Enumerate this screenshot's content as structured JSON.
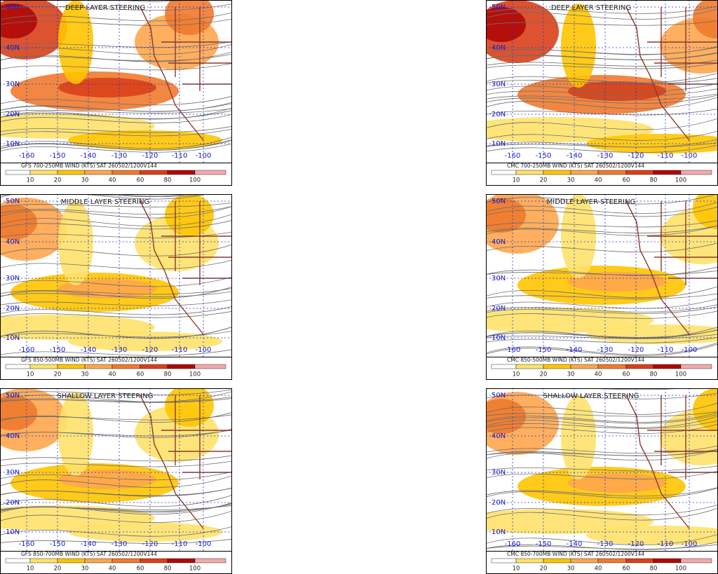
{
  "panels": [
    {
      "title": "DEEP LAYER STEERING",
      "caption": "GFS 700-250MB WIND (KTS) SAT 260502/1200V144"
    },
    {
      "title": "DEEP LAYER STEERING",
      "caption": "CMC 700-250MB WIND (KTS) SAT 260502/1200V144"
    },
    {
      "title": "MIDDLE LAYER STEERING",
      "caption": "GFS 850-500MB WIND (KTS) SAT 260502/1200V144"
    },
    {
      "title": "MIDDLE LAYER STEERING",
      "caption": "CMC 850-500MB WIND (KTS) SAT 260502/1200V144"
    },
    {
      "title": "SHALLOW LAYER STEERING",
      "caption": "GFS 850-700MB WIND (KTS) SAT 260502/1200V144"
    },
    {
      "title": "SHALLOW LAYER STEERING",
      "caption": "CMC 850-700MB WIND (KTS) SAT 260502/1200V144"
    }
  ],
  "lat_labels": [
    "50N",
    "40N",
    "30N",
    "20N",
    "10N"
  ],
  "lon_labels": [
    "-160",
    "-150",
    "-140",
    "-130",
    "-120",
    "-110",
    "-100"
  ],
  "colorbar_labels": [
    10,
    20,
    30,
    40,
    60,
    80,
    100
  ]
}
